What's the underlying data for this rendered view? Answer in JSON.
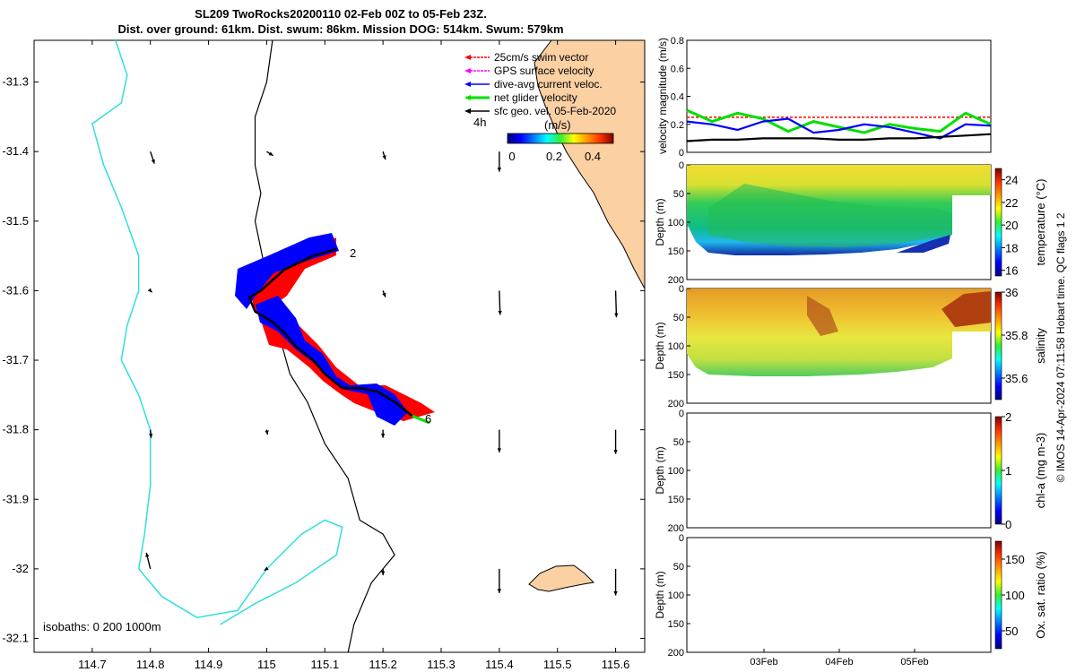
{
  "title": {
    "line1": "SL209 TwoRocks20200110 02-Feb 00Z to 05-Feb 23Z.",
    "line2": "Dist. over ground: 61km. Dist. swum: 86km. Mission DOG: 514km. Swum: 579km"
  },
  "colors": {
    "swim": "#ff0000",
    "gps": "#ff00ff",
    "current": "#0000ff",
    "net": "#00e000",
    "geo": "#000000",
    "coast_fill": "#fbd0a3",
    "isobath_200": "#000000",
    "isobath_1000": "#33dddd"
  },
  "legend": [
    {
      "key": "swim",
      "label": "25cm/s swim vector"
    },
    {
      "key": "gps",
      "label": "GPS surface velocity"
    },
    {
      "key": "current",
      "label": "dive-avg current veloc."
    },
    {
      "key": "net",
      "label": "net glider velocity"
    },
    {
      "key": "geo",
      "label": "sfc geo. vel. 05-Feb-2020"
    }
  ],
  "colorbar_labels": {
    "left": "4h",
    "units": "(m/s)",
    "ticks": [
      "0",
      "0.2",
      "0.4"
    ]
  },
  "isobaths_label": "isobaths: 0   200  1000m",
  "waypoint_labels": [
    "2",
    "6"
  ],
  "side_note": "© IMOS 14-Apr-2024 07:11:58 Hobart time. QC flags 1  2",
  "chart_data": [
    {
      "type": "scatter",
      "name": "map",
      "xlim": [
        114.6,
        115.65
      ],
      "ylim": [
        -32.12,
        -31.24
      ],
      "xticks": [
        114.7,
        114.8,
        114.9,
        115,
        115.1,
        115.2,
        115.3,
        115.4,
        115.5,
        115.6
      ],
      "xtick_labels": [
        "114.7",
        "114.8",
        "114.9",
        "115",
        "115.1",
        "115.2",
        "115.3",
        "115.4",
        "115.5",
        "115.6"
      ],
      "yticks": [
        -31.3,
        -31.4,
        -31.5,
        -31.6,
        -31.7,
        -31.8,
        -31.9,
        -32,
        -32.1
      ],
      "ytick_labels": [
        "-31.3",
        "-31.4",
        "-31.5",
        "-31.6",
        "-31.7",
        "-31.8",
        "-31.9",
        "-32",
        "-32.1"
      ],
      "glider_track": [
        [
          115.12,
          -31.54
        ],
        [
          115.08,
          -31.55
        ],
        [
          115.03,
          -31.57
        ],
        [
          114.99,
          -31.6
        ],
        [
          114.97,
          -31.61
        ],
        [
          114.98,
          -31.63
        ],
        [
          115.01,
          -31.645
        ],
        [
          115.03,
          -31.66
        ],
        [
          115.05,
          -31.68
        ],
        [
          115.08,
          -31.7
        ],
        [
          115.1,
          -31.72
        ],
        [
          115.13,
          -31.74
        ],
        [
          115.16,
          -31.74
        ],
        [
          115.19,
          -31.745
        ],
        [
          115.22,
          -31.76
        ],
        [
          115.25,
          -31.78
        ],
        [
          115.28,
          -31.79
        ]
      ],
      "isobath_200": [
        [
          115.01,
          -31.24
        ],
        [
          115.0,
          -31.3
        ],
        [
          114.98,
          -31.35
        ],
        [
          114.98,
          -31.42
        ],
        [
          114.99,
          -31.46
        ],
        [
          114.98,
          -31.5
        ],
        [
          114.99,
          -31.54
        ],
        [
          115.0,
          -31.58
        ],
        [
          115.01,
          -31.62
        ],
        [
          115.02,
          -31.66
        ],
        [
          115.04,
          -31.72
        ],
        [
          115.07,
          -31.76
        ],
        [
          115.1,
          -31.82
        ],
        [
          115.14,
          -31.87
        ],
        [
          115.16,
          -31.93
        ],
        [
          115.2,
          -31.95
        ],
        [
          115.22,
          -31.98
        ],
        [
          115.18,
          -32.02
        ],
        [
          115.15,
          -32.08
        ],
        [
          115.14,
          -32.12
        ]
      ],
      "isobath_1000": [
        [
          114.74,
          -31.24
        ],
        [
          114.76,
          -31.29
        ],
        [
          114.75,
          -31.33
        ],
        [
          114.7,
          -31.36
        ],
        [
          114.72,
          -31.42
        ],
        [
          114.75,
          -31.48
        ],
        [
          114.78,
          -31.55
        ],
        [
          114.78,
          -31.6
        ],
        [
          114.76,
          -31.65
        ],
        [
          114.75,
          -31.7
        ],
        [
          114.78,
          -31.75
        ],
        [
          114.8,
          -31.8
        ],
        [
          114.8,
          -31.88
        ],
        [
          114.79,
          -31.95
        ],
        [
          114.78,
          -32.0
        ],
        [
          114.82,
          -32.04
        ],
        [
          114.88,
          -32.07
        ],
        [
          114.95,
          -32.06
        ],
        [
          115.0,
          -32.0
        ],
        [
          115.06,
          -31.95
        ],
        [
          115.1,
          -31.93
        ],
        [
          115.13,
          -31.94
        ],
        [
          115.12,
          -31.98
        ],
        [
          115.05,
          -32.02
        ],
        [
          114.98,
          -32.05
        ],
        [
          114.92,
          -32.08
        ]
      ],
      "current_field": [
        {
          "x": 114.8,
          "y": -31.4,
          "u": 0.05,
          "v": -0.15
        },
        {
          "x": 115.0,
          "y": -31.4,
          "u": 0.08,
          "v": -0.05
        },
        {
          "x": 115.2,
          "y": -31.4,
          "u": 0.03,
          "v": -0.1
        },
        {
          "x": 115.4,
          "y": -31.4,
          "u": 0.0,
          "v": -0.25
        },
        {
          "x": 114.8,
          "y": -31.6,
          "u": 0.02,
          "v": -0.02
        },
        {
          "x": 115.2,
          "y": -31.6,
          "u": 0.03,
          "v": -0.08
        },
        {
          "x": 115.4,
          "y": -31.6,
          "u": 0.01,
          "v": -0.3
        },
        {
          "x": 115.6,
          "y": -31.6,
          "u": 0.01,
          "v": -0.33
        },
        {
          "x": 114.8,
          "y": -31.8,
          "u": 0.01,
          "v": -0.1
        },
        {
          "x": 115.0,
          "y": -31.8,
          "u": 0.01,
          "v": -0.06
        },
        {
          "x": 115.2,
          "y": -31.8,
          "u": 0.0,
          "v": -0.1
        },
        {
          "x": 115.4,
          "y": -31.8,
          "u": 0.0,
          "v": -0.28
        },
        {
          "x": 115.6,
          "y": -31.8,
          "u": 0.0,
          "v": -0.3
        },
        {
          "x": 114.8,
          "y": -32.0,
          "u": -0.05,
          "v": 0.2
        },
        {
          "x": 115.0,
          "y": -32.0,
          "u": -0.03,
          "v": -0.02
        },
        {
          "x": 115.2,
          "y": -32.0,
          "u": 0.0,
          "v": -0.08
        },
        {
          "x": 115.4,
          "y": -32.0,
          "u": 0.0,
          "v": -0.3
        },
        {
          "x": 115.6,
          "y": -32.0,
          "u": 0.0,
          "v": -0.33
        }
      ]
    },
    {
      "type": "line",
      "name": "velocity",
      "ylabel": "velocity magnitude (m/s)",
      "ylim": [
        0,
        0.8
      ],
      "yticks": [
        0,
        0.2,
        0.4,
        0.6,
        0.8
      ],
      "xlim": [
        0,
        4
      ],
      "series": [
        {
          "key": "swim",
          "values": [
            0.25,
            0.25,
            0.25,
            0.25,
            0.25,
            0.25,
            0.25,
            0.25,
            0.25,
            0.25,
            0.25,
            0.25,
            0.25
          ]
        },
        {
          "key": "net",
          "values": [
            0.3,
            0.22,
            0.28,
            0.24,
            0.15,
            0.22,
            0.18,
            0.14,
            0.2,
            0.17,
            0.15,
            0.28,
            0.2
          ]
        },
        {
          "key": "current",
          "values": [
            0.22,
            0.2,
            0.16,
            0.22,
            0.24,
            0.14,
            0.16,
            0.2,
            0.18,
            0.14,
            0.1,
            0.2,
            0.19
          ]
        },
        {
          "key": "geo",
          "values": [
            0.08,
            0.09,
            0.09,
            0.1,
            0.1,
            0.1,
            0.09,
            0.09,
            0.1,
            0.1,
            0.11,
            0.12,
            0.13
          ]
        }
      ]
    },
    {
      "type": "heatmap",
      "name": "temperature",
      "ylabel": "Depth (m)",
      "cbar_label": "temperature (°C)",
      "yticks": [
        0,
        50,
        100,
        150,
        200
      ],
      "cticks": [
        "16",
        "18",
        "20",
        "22",
        "24"
      ],
      "clim": [
        15.5,
        25
      ]
    },
    {
      "type": "heatmap",
      "name": "salinity",
      "ylabel": "Depth (m)",
      "cbar_label": "salinity",
      "yticks": [
        0,
        50,
        100,
        150,
        200
      ],
      "cticks": [
        "35.6",
        "35.8",
        "36"
      ],
      "clim": [
        35.5,
        36
      ]
    },
    {
      "type": "heatmap",
      "name": "chla",
      "ylabel": "Depth (m)",
      "cbar_label": "chl-a (mg m-3)",
      "yticks": [
        0,
        50,
        100,
        150,
        200
      ],
      "cticks": [
        "0",
        "1",
        "2"
      ],
      "clim": [
        0,
        2
      ]
    },
    {
      "type": "heatmap",
      "name": "oxygen",
      "ylabel": "Depth (m)",
      "cbar_label": "Ox. sat. ratio (%)",
      "yticks": [
        0,
        50,
        100,
        150,
        200
      ],
      "cticks": [
        "50",
        "100",
        "150"
      ],
      "clim": [
        25,
        175
      ],
      "xtick_labels": [
        "03Feb",
        "04Feb",
        "05Feb"
      ]
    }
  ]
}
